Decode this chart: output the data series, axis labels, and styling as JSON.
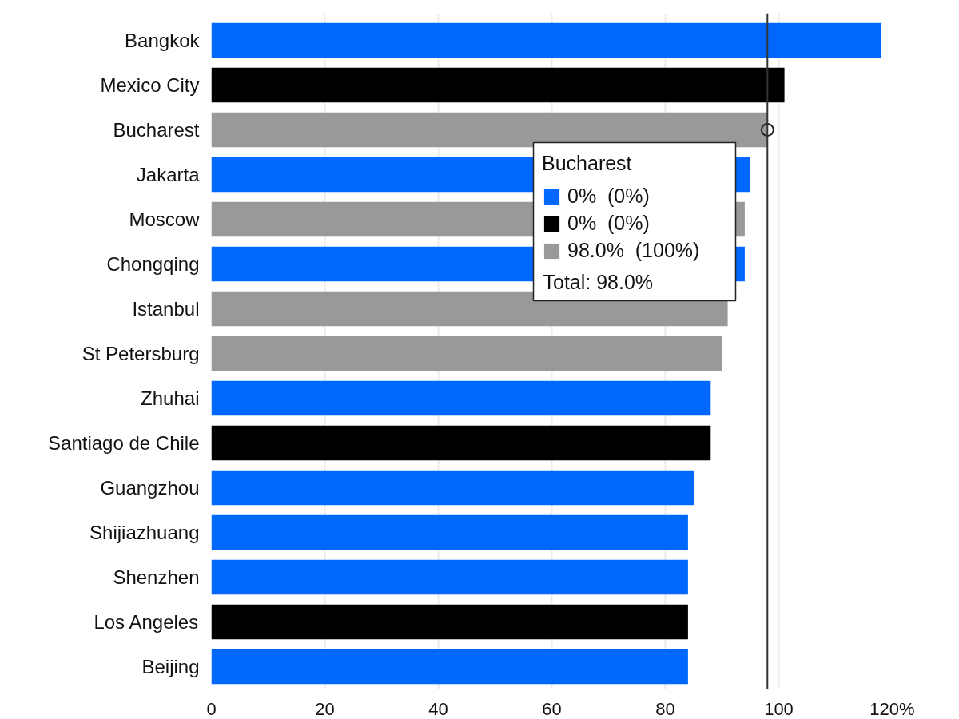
{
  "chart_data": {
    "type": "bar",
    "orientation": "horizontal",
    "categories": [
      "Bangkok",
      "Mexico City",
      "Bucharest",
      "Jakarta",
      "Moscow",
      "Chongqing",
      "Istanbul",
      "St Petersburg",
      "Zhuhai",
      "Santiago de Chile",
      "Guangzhou",
      "Shijiazhuang",
      "Shenzhen",
      "Los Angeles",
      "Beijing"
    ],
    "series": [
      {
        "name": "0%  (0%)",
        "color": "#0068ff",
        "values": [
          118,
          null,
          null,
          95,
          null,
          94,
          null,
          null,
          88,
          null,
          85,
          84,
          84,
          null,
          84
        ]
      },
      {
        "name": "0%  (0%)",
        "color": "#000000",
        "values": [
          null,
          101,
          null,
          null,
          null,
          null,
          null,
          null,
          null,
          88,
          null,
          null,
          null,
          84,
          null
        ]
      },
      {
        "name": "98.0%  (100%)",
        "color": "#999999",
        "values": [
          null,
          null,
          98,
          null,
          94,
          null,
          91,
          90,
          null,
          null,
          null,
          null,
          null,
          null,
          null
        ]
      },
      {
        "type": "scatter",
        "color": "#222222",
        "marker": "circle",
        "values": [
          null,
          null,
          98,
          null,
          null,
          null,
          null,
          null,
          null,
          null,
          null,
          null,
          null,
          null,
          null
        ]
      }
    ],
    "xlim": [
      0,
      120
    ],
    "xticks": [
      0,
      20,
      40,
      60,
      80,
      100,
      {
        "value": 120,
        "label": "120%"
      }
    ],
    "grid": "x",
    "ref_lines": [
      {
        "axis": "x",
        "value": 98,
        "color": "#333333"
      }
    ],
    "legend": "top right",
    "legend_title": "Bucharest",
    "annotations": [
      "Total: 98.0%"
    ]
  }
}
